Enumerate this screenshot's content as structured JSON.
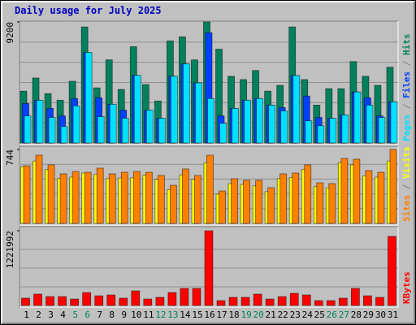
{
  "chart_data": [
    {
      "type": "bar",
      "title": "Daily usage for July 2025",
      "legend_separator": " / ",
      "ylim": [
        0,
        9200
      ],
      "yticks": [
        9200
      ],
      "series": [
        {
          "name": "Hits",
          "color": "#00805c",
          "values": [
            3940,
            4940,
            3750,
            3250,
            4690,
            8820,
            4190,
            6320,
            4070,
            7320,
            4440,
            3190,
            7760,
            8070,
            6320,
            9200,
            7130,
            5070,
            4820,
            5510,
            3940,
            4380,
            8820,
            4820,
            2880,
            4130,
            4130,
            6190,
            5070,
            4380,
            5760
          ]
        },
        {
          "name": "Files",
          "color": "#0040ff",
          "values": [
            3000,
            3250,
            2630,
            2060,
            3380,
            6880,
            3440,
            2940,
            2500,
            5140,
            2500,
            1880,
            5070,
            6010,
            4570,
            8380,
            2060,
            2630,
            3250,
            3380,
            2880,
            2690,
            5130,
            3570,
            1940,
            1880,
            2130,
            3880,
            3440,
            2060,
            3130
          ]
        },
        {
          "name": "Pages",
          "color": "#00e0ff",
          "values": [
            2060,
            3250,
            1940,
            1250,
            2820,
            6880,
            2000,
            2940,
            1880,
            5140,
            2500,
            1880,
            5070,
            6010,
            4570,
            3380,
            1500,
            2630,
            3250,
            3380,
            2880,
            2440,
            5130,
            1690,
            1310,
            1880,
            2130,
            3880,
            2880,
            1940,
            3130
          ]
        }
      ]
    },
    {
      "type": "bar",
      "ylim": [
        0,
        744
      ],
      "yticks": [
        744
      ],
      "series": [
        {
          "name": "Visits",
          "color": "#ffff00",
          "values": [
            571,
            628,
            541,
            452,
            466,
            507,
            492,
            450,
            458,
            459,
            486,
            443,
            340,
            488,
            444,
            610,
            295,
            400,
            392,
            378,
            320,
            451,
            462,
            542,
            370,
            358,
            612,
            590,
            478,
            466,
            628
          ]
        },
        {
          "name": "Sites",
          "color": "#ff8000",
          "values": [
            580,
            687,
            589,
            499,
            523,
            515,
            556,
            499,
            515,
            523,
            515,
            483,
            384,
            548,
            483,
            687,
            327,
            450,
            434,
            434,
            360,
            499,
            507,
            589,
            409,
            401,
            654,
            646,
            532,
            515,
            744
          ]
        }
      ]
    },
    {
      "type": "bar",
      "ylim": [
        0,
        1221992
      ],
      "yticks": [
        1221992
      ],
      "categories": [
        "1",
        "2",
        "3",
        "4",
        "5",
        "6",
        "7",
        "8",
        "9",
        "10",
        "11",
        "12",
        "13",
        "14",
        "15",
        "16",
        "17",
        "18",
        "19",
        "20",
        "21",
        "22",
        "23",
        "24",
        "25",
        "26",
        "27",
        "28",
        "29",
        "30",
        "31"
      ],
      "category_colors": [
        "#000000",
        "#000000",
        "#000000",
        "#000000",
        "#00805c",
        "#00805c",
        "#000000",
        "#000000",
        "#000000",
        "#000000",
        "#000000",
        "#00805c",
        "#00805c",
        "#000000",
        "#000000",
        "#000000",
        "#000000",
        "#000000",
        "#00805c",
        "#00805c",
        "#000000",
        "#000000",
        "#000000",
        "#000000",
        "#000000",
        "#00805c",
        "#00805c",
        "#000000",
        "#000000",
        "#000000",
        "#000000"
      ],
      "series": [
        {
          "name": "KBytes",
          "color": "#ff0000",
          "values": [
            120000,
            186000,
            146000,
            146000,
            106000,
            212000,
            159000,
            173000,
            120000,
            239000,
            106000,
            133000,
            212000,
            279000,
            279000,
            1221992,
            80000,
            133000,
            133000,
            186000,
            106000,
            146000,
            199000,
            173000,
            80000,
            80000,
            120000,
            279000,
            159000,
            133000,
            1129000
          ]
        }
      ]
    }
  ]
}
